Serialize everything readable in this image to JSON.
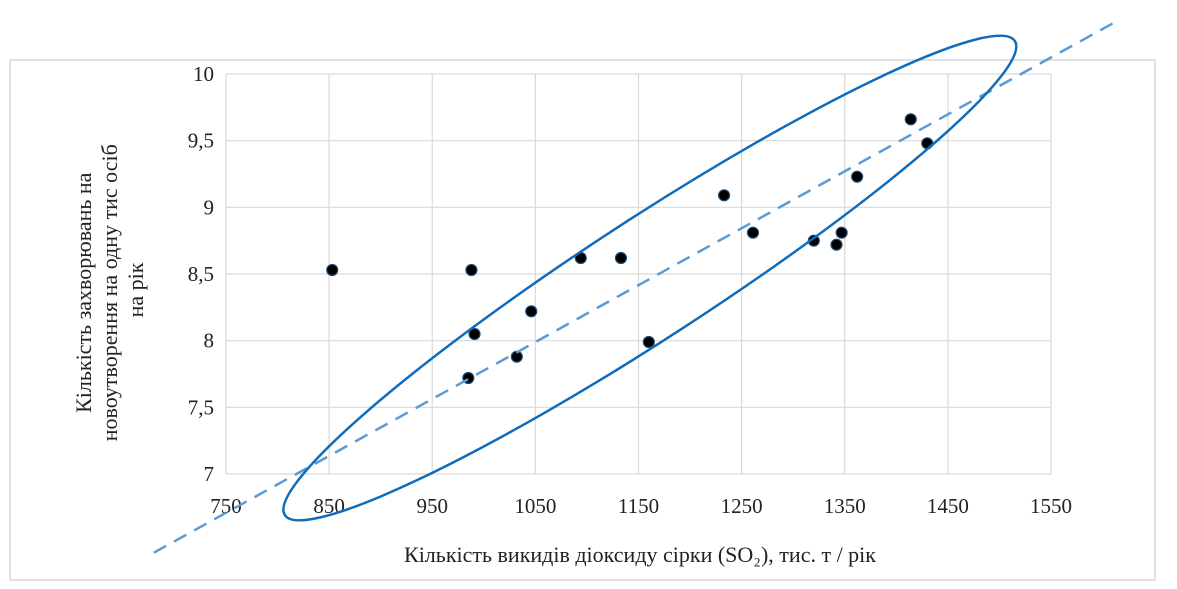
{
  "chart_data": {
    "type": "scatter",
    "xlabel": "Кількість викидів діоксиду сірки (SO₂), тис. т / рік",
    "ylabel_lines": [
      "Кількість захворювань на",
      "новоутворення на одну тис осіб",
      "на рік"
    ],
    "xlim": [
      750,
      1550
    ],
    "ylim": [
      7,
      10
    ],
    "x_ticks": [
      750,
      850,
      950,
      1050,
      1150,
      1250,
      1350,
      1450,
      1550
    ],
    "x_tick_labels": [
      "750",
      "850",
      "950",
      "1050",
      "1150",
      "1250",
      "1350",
      "1450",
      "1550"
    ],
    "y_ticks": [
      7,
      7.5,
      8,
      8.5,
      9,
      9.5,
      10
    ],
    "y_tick_labels": [
      "7",
      "7,5",
      "8",
      "8,5",
      "9",
      "9,5",
      "10"
    ],
    "grid": true,
    "points": [
      {
        "x": 853,
        "y": 8.53
      },
      {
        "x": 985,
        "y": 7.72
      },
      {
        "x": 988,
        "y": 8.53
      },
      {
        "x": 991,
        "y": 8.05
      },
      {
        "x": 1032,
        "y": 7.88
      },
      {
        "x": 1046,
        "y": 8.22
      },
      {
        "x": 1094,
        "y": 8.62
      },
      {
        "x": 1133,
        "y": 8.62
      },
      {
        "x": 1160,
        "y": 7.99
      },
      {
        "x": 1233,
        "y": 9.09
      },
      {
        "x": 1261,
        "y": 8.81
      },
      {
        "x": 1320,
        "y": 8.75
      },
      {
        "x": 1342,
        "y": 8.72
      },
      {
        "x": 1347,
        "y": 8.81
      },
      {
        "x": 1362,
        "y": 9.23
      },
      {
        "x": 1414,
        "y": 9.66
      },
      {
        "x": 1430,
        "y": 9.48
      }
    ],
    "trendline": {
      "style": "dashed",
      "from": {
        "x": 680,
        "y": 6.41
      },
      "to": {
        "x": 1617,
        "y": 10.41
      }
    },
    "ellipse": {
      "center": {
        "x": 1161,
        "y": 8.47
      },
      "rx_data": 422,
      "ry_data": 0.45,
      "rotation_deg": -33
    },
    "colors": {
      "marker": "#000000",
      "marker_edge": "#1f4e79",
      "trendline": "#5b9bd5",
      "ellipse": "#0f6cbd",
      "grid": "#d9d9d9",
      "frame": "#d9d9d9"
    }
  }
}
